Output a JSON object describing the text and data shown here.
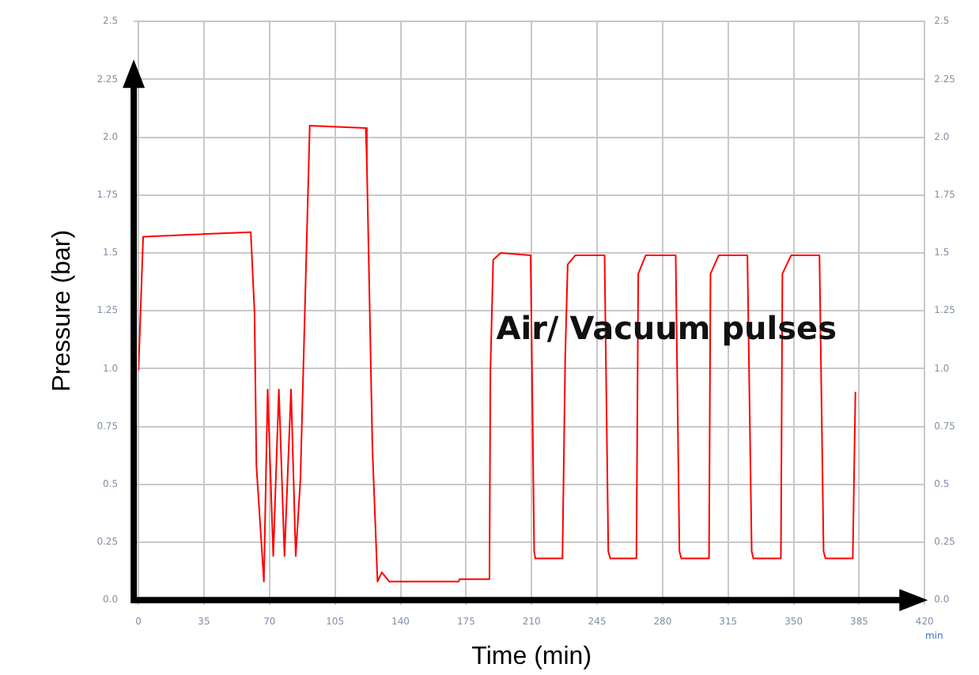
{
  "chart_data": {
    "type": "line",
    "xlabel": "Time (min)",
    "ylabel": "Pressure (bar)",
    "annotations": [
      "Air/ Vacuum pulses",
      "min"
    ],
    "xlim": [
      0,
      420
    ],
    "xticks": [
      0,
      35,
      70,
      105,
      140,
      175,
      210,
      245,
      280,
      315,
      350,
      385,
      420
    ],
    "ylim": [
      0,
      2.5
    ],
    "yticks": [
      {
        "value": 0,
        "label": "0.0"
      },
      0.25,
      0.5,
      0.75,
      {
        "value": 1,
        "label": "1.0"
      },
      1.25,
      1.5,
      1.75,
      {
        "value": 2,
        "label": "2.0"
      },
      2.25,
      2.5
    ],
    "y2lim": [
      0,
      2.5
    ],
    "y2ticks": [
      {
        "value": 0,
        "label": "0.0"
      },
      0.25,
      0.5,
      0.75,
      {
        "value": 1,
        "label": "1.0"
      },
      1.25,
      1.5,
      1.75,
      {
        "value": 2,
        "label": "2.0"
      },
      2.25,
      2.5
    ],
    "grid": true,
    "legend": false,
    "marker": "none",
    "line_style": "solid",
    "series": [
      {
        "color": "#ff0000",
        "x": [
          0,
          2.5,
          60,
          62,
          63,
          67,
          69,
          72,
          75,
          78,
          81.5,
          84,
          86.5,
          91.5,
          121.4,
          122,
          125,
          127.7,
          130,
          134,
          171,
          171.5,
          187.5,
          188,
          189.5,
          193.5,
          209.5,
          211.4,
          212,
          226.5,
          228,
          229.3,
          233.4,
          249,
          251,
          252,
          266,
          267,
          271,
          287,
          289,
          290,
          304.8,
          305.6,
          310,
          325.3,
          327.6,
          328.5,
          343.2,
          344,
          348.7,
          363.8,
          366,
          367,
          381.6,
          383
        ],
        "values": [
          0.99,
          1.57,
          1.59,
          1.24,
          0.58,
          0.08,
          0.91,
          0.19,
          0.91,
          0.19,
          0.91,
          0.19,
          0.52,
          2.05,
          2.04,
          1.89,
          0.65,
          0.08,
          0.12,
          0.08,
          0.08,
          0.09,
          0.09,
          0.99,
          1.47,
          1.5,
          1.49,
          0.21,
          0.18,
          0.18,
          1.06,
          1.45,
          1.49,
          1.49,
          0.21,
          0.18,
          0.18,
          1.41,
          1.49,
          1.49,
          0.21,
          0.18,
          0.18,
          1.41,
          1.49,
          1.49,
          0.21,
          0.18,
          0.18,
          1.41,
          1.49,
          1.49,
          0.21,
          0.18,
          0.18,
          0.9
        ]
      }
    ]
  }
}
